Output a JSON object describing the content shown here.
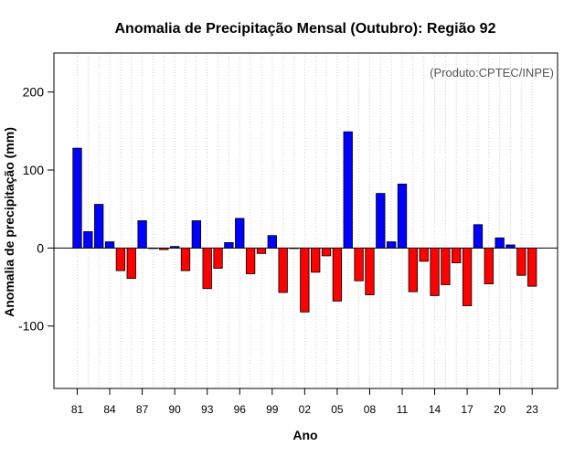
{
  "chart_data": {
    "type": "bar",
    "title": "Anomalia de Precipitação Mensal (Outubro): Região 92",
    "xlabel": "Ano",
    "ylabel": "Anomalia de precipitação (mm)",
    "annotation": "(Produto:CPTEC/INPE)",
    "ylim": [
      -180,
      250
    ],
    "yticks": [
      -100,
      0,
      100,
      200
    ],
    "grid": "vertical dotted",
    "positive_color": "#0000ff",
    "negative_color": "#ff0000",
    "categories": [
      "81",
      "82",
      "83",
      "84",
      "85",
      "86",
      "87",
      "88",
      "89",
      "90",
      "91",
      "92",
      "93",
      "94",
      "95",
      "96",
      "97",
      "98",
      "99",
      "00",
      "01",
      "02",
      "03",
      "04",
      "05",
      "06",
      "07",
      "08",
      "09",
      "10",
      "11",
      "12",
      "13",
      "14",
      "15",
      "16",
      "17",
      "18",
      "19",
      "20",
      "21",
      "22",
      "23"
    ],
    "xtick_labels": [
      "81",
      "84",
      "87",
      "90",
      "93",
      "96",
      "99",
      "02",
      "05",
      "08",
      "11",
      "14",
      "17",
      "20",
      "23"
    ],
    "values": [
      128,
      21,
      56,
      8,
      -29,
      -39,
      35,
      0,
      -2,
      2,
      -29,
      35,
      -52,
      -26,
      7,
      38,
      -33,
      -7,
      16,
      -57,
      0,
      -82,
      -31,
      -10,
      -68,
      149,
      -42,
      -60,
      70,
      8,
      82,
      -56,
      -17,
      -61,
      -47,
      -19,
      -74,
      30,
      -46,
      13,
      4,
      -35,
      -49
    ]
  }
}
